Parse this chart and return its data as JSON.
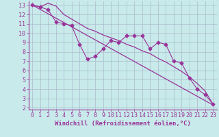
{
  "line1_x": [
    0,
    1,
    2,
    3,
    4,
    5,
    6,
    7,
    8,
    9,
    10,
    11,
    12,
    13,
    14,
    15,
    16,
    17,
    18,
    19,
    20,
    21,
    22,
    23
  ],
  "line1_y": [
    13.0,
    12.8,
    12.5,
    11.2,
    11.0,
    10.8,
    8.8,
    7.2,
    7.5,
    8.3,
    9.2,
    9.0,
    9.7,
    9.7,
    9.7,
    8.3,
    9.0,
    8.8,
    7.0,
    6.8,
    5.2,
    4.0,
    3.4,
    2.4
  ],
  "line2_x": [
    0,
    23
  ],
  "line2_y": [
    13.0,
    2.3
  ],
  "line3_x": [
    0,
    1,
    2,
    3,
    4,
    5,
    6,
    7,
    8,
    9,
    10,
    11,
    12,
    13,
    14,
    15,
    16,
    17,
    18,
    19,
    20,
    21,
    22,
    23
  ],
  "line3_y": [
    13.0,
    12.8,
    13.2,
    12.9,
    12.0,
    11.5,
    11.0,
    10.5,
    10.2,
    9.8,
    9.5,
    9.2,
    8.8,
    8.5,
    8.1,
    7.8,
    7.3,
    6.9,
    6.4,
    5.9,
    5.3,
    4.6,
    3.8,
    2.4
  ],
  "line_color": "#993399",
  "bg_color": "#c8eaea",
  "grid_color": "#aabbcc",
  "xlabel": "Windchill (Refroidissement éolien,°C)",
  "xlim": [
    -0.5,
    23.5
  ],
  "ylim": [
    1.8,
    13.4
  ],
  "xticks": [
    0,
    1,
    2,
    3,
    4,
    5,
    6,
    7,
    8,
    9,
    10,
    11,
    12,
    13,
    14,
    15,
    16,
    17,
    18,
    19,
    20,
    21,
    22,
    23
  ],
  "yticks": [
    2,
    3,
    4,
    5,
    6,
    7,
    8,
    9,
    10,
    11,
    12,
    13
  ],
  "xlabel_fontsize": 6.5,
  "tick_fontsize": 6,
  "marker": "D",
  "marker_size": 2.5
}
